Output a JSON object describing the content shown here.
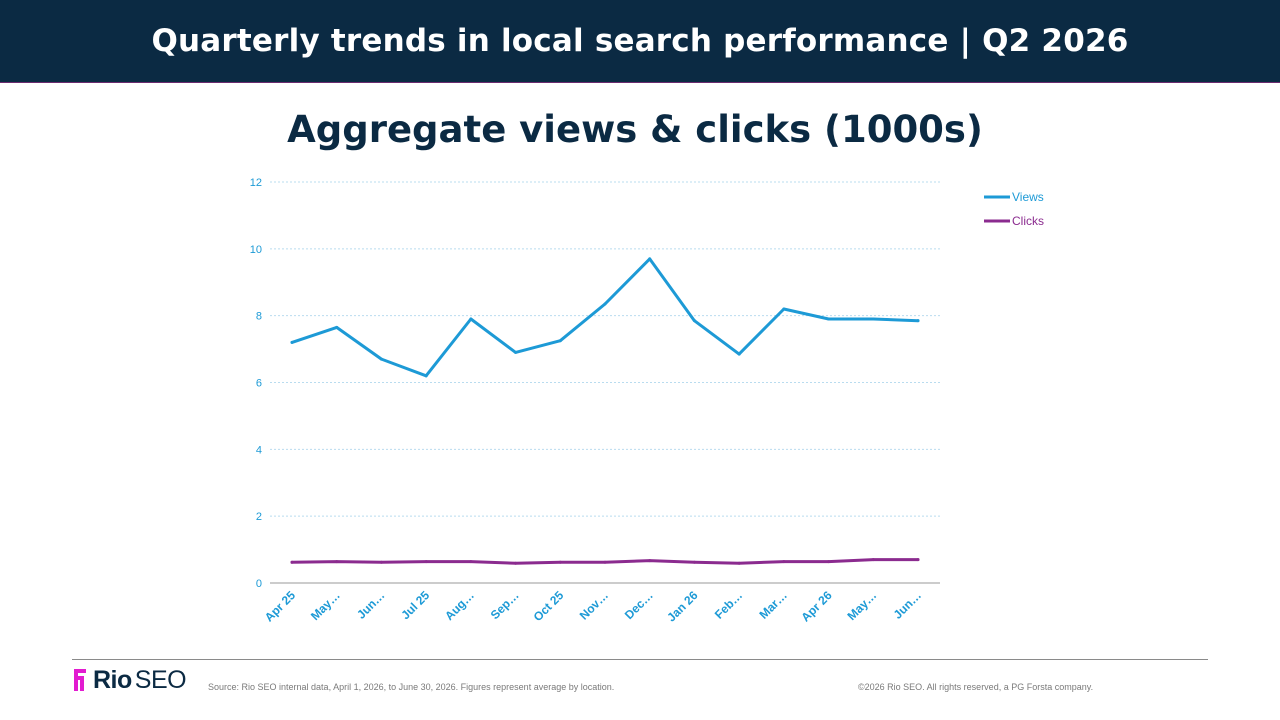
{
  "header": {
    "title": "Quarterly trends in local search performance | Q2 2026"
  },
  "chart_data": {
    "type": "line",
    "title": "Aggregate views & clicks (1000s)",
    "categories": [
      "Apr 25",
      "May…",
      "Jun…",
      "Jul 25",
      "Aug…",
      "Sep…",
      "Oct 25",
      "Nov…",
      "Dec…",
      "Jan 26",
      "Feb…",
      "Mar…",
      "Apr 26",
      "May…",
      "Jun…"
    ],
    "series": [
      {
        "name": "Views",
        "color": "#1d9ad6",
        "values": [
          7.2,
          7.65,
          6.7,
          6.2,
          7.9,
          6.9,
          7.25,
          8.35,
          9.7,
          7.85,
          6.85,
          8.2,
          7.9,
          7.9,
          7.85
        ]
      },
      {
        "name": "Clicks",
        "color": "#8b2b8f",
        "values": [
          0.62,
          0.64,
          0.62,
          0.64,
          0.64,
          0.59,
          0.62,
          0.62,
          0.67,
          0.62,
          0.59,
          0.64,
          0.64,
          0.7,
          0.7
        ]
      }
    ],
    "ylim": [
      0,
      12
    ],
    "yticks": [
      0,
      2,
      4,
      6,
      8,
      10,
      12
    ],
    "grid": true,
    "legend_position": "top-right",
    "tick_color": "#1d9ad6"
  },
  "footer": {
    "logo_bold": "Rio",
    "logo_light": "SEO",
    "source": "Source: Rio SEO internal data, April 1, 2026, to June 30, 2026. Figures represent average by location.",
    "copyright": "©2026 Rio SEO. All rights reserved, a PG Forsta company."
  }
}
